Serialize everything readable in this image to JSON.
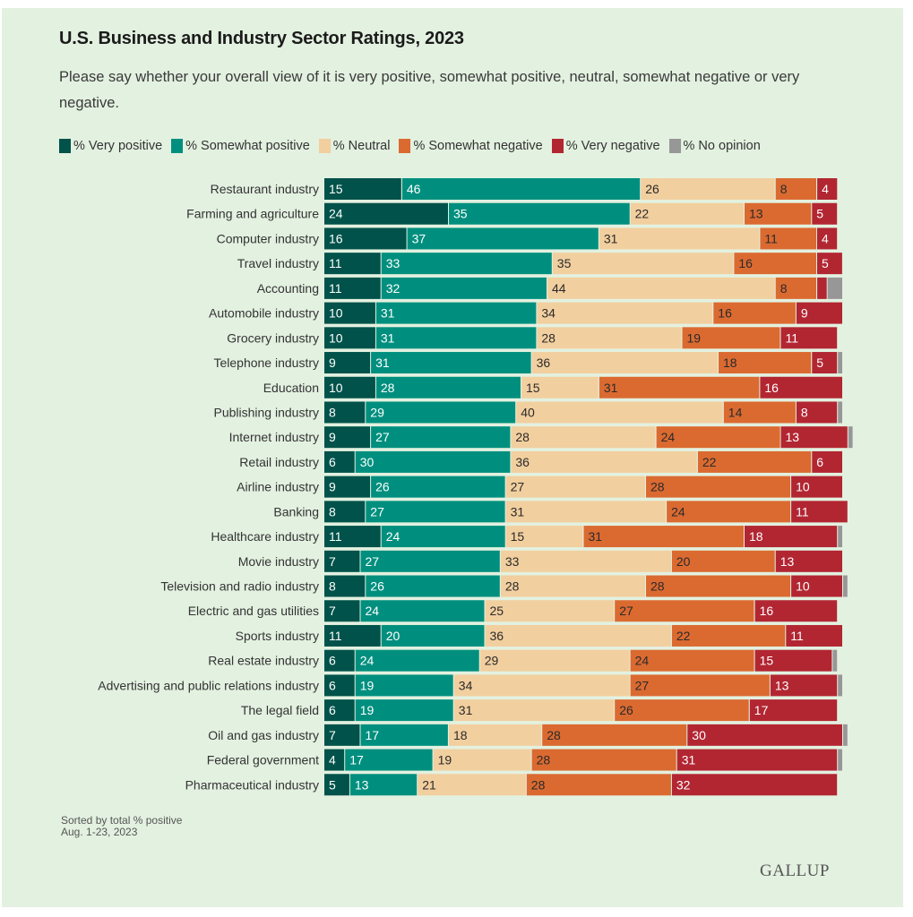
{
  "title": "U.S. Business and Industry Sector Ratings, 2023",
  "subtitle": "Please say whether your overall view of it is very positive, somewhat positive, neutral, somewhat negative or very negative.",
  "footnote": {
    "line1": "Sorted by total % positive",
    "line2": "Aug. 1-23, 2023"
  },
  "logo": "GALLUP",
  "colors": {
    "very_positive": "#00524a",
    "somewhat_positive": "#008f7e",
    "neutral": "#f2cf9f",
    "somewhat_negative": "#db6a31",
    "very_negative": "#b22632",
    "no_opinion": "#979797",
    "label_light": "#ffffff",
    "label_dark": "#2a2a2a"
  },
  "legend": [
    {
      "key": "very_positive",
      "label": "% Very positive"
    },
    {
      "key": "somewhat_positive",
      "label": "% Somewhat positive"
    },
    {
      "key": "neutral",
      "label": "% Neutral"
    },
    {
      "key": "somewhat_negative",
      "label": "% Somewhat negative"
    },
    {
      "key": "very_negative",
      "label": "% Very negative"
    },
    {
      "key": "no_opinion",
      "label": "% No opinion"
    }
  ],
  "chart_data": {
    "type": "bar",
    "orientation": "horizontal",
    "stacked": true,
    "title": "U.S. Business and Industry Sector Ratings, 2023",
    "xlabel": "",
    "ylabel": "",
    "xlim": [
      0,
      100
    ],
    "grid": false,
    "legend_position": "top",
    "categories": [
      "Restaurant industry",
      "Farming and agriculture",
      "Computer industry",
      "Travel industry",
      "Accounting",
      "Automobile industry",
      "Grocery industry",
      "Telephone industry",
      "Education",
      "Publishing industry",
      "Internet industry",
      "Retail industry",
      "Airline industry",
      "Banking",
      "Healthcare industry",
      "Movie industry",
      "Television and radio industry",
      "Electric and gas utilities",
      "Sports industry",
      "Real estate industry",
      "Advertising and public relations industry",
      "The legal field",
      "Oil and gas industry",
      "Federal government",
      "Pharmaceutical industry"
    ],
    "series": [
      {
        "name": "% Very positive",
        "key": "very_positive",
        "labeled": [
          true,
          true,
          true,
          true,
          true,
          true,
          true,
          true,
          true,
          true,
          true,
          true,
          true,
          true,
          true,
          true,
          true,
          true,
          true,
          true,
          true,
          true,
          true,
          true,
          true
        ],
        "values": [
          15,
          24,
          16,
          11,
          11,
          10,
          10,
          9,
          10,
          8,
          9,
          6,
          9,
          8,
          11,
          7,
          8,
          7,
          11,
          6,
          6,
          6,
          7,
          4,
          5
        ]
      },
      {
        "name": "% Somewhat positive",
        "key": "somewhat_positive",
        "labeled": [
          true,
          true,
          true,
          true,
          true,
          true,
          true,
          true,
          true,
          true,
          true,
          true,
          true,
          true,
          true,
          true,
          true,
          true,
          true,
          true,
          true,
          true,
          true,
          true,
          true
        ],
        "values": [
          46,
          35,
          37,
          33,
          32,
          31,
          31,
          31,
          28,
          29,
          27,
          30,
          26,
          27,
          24,
          27,
          26,
          24,
          20,
          24,
          19,
          19,
          17,
          17,
          13
        ]
      },
      {
        "name": "% Neutral",
        "key": "neutral",
        "labeled": [
          true,
          true,
          true,
          true,
          true,
          true,
          true,
          true,
          true,
          true,
          true,
          true,
          true,
          true,
          true,
          true,
          true,
          true,
          true,
          true,
          true,
          true,
          true,
          true,
          true
        ],
        "values": [
          26,
          22,
          31,
          35,
          44,
          34,
          28,
          36,
          15,
          40,
          28,
          36,
          27,
          31,
          15,
          33,
          28,
          25,
          36,
          29,
          34,
          31,
          18,
          19,
          21
        ]
      },
      {
        "name": "% Somewhat negative",
        "key": "somewhat_negative",
        "labeled": [
          true,
          true,
          true,
          true,
          true,
          true,
          true,
          true,
          true,
          true,
          true,
          true,
          true,
          true,
          true,
          true,
          true,
          true,
          true,
          true,
          true,
          true,
          true,
          true,
          true
        ],
        "values": [
          8,
          13,
          11,
          16,
          8,
          16,
          19,
          18,
          31,
          14,
          24,
          22,
          28,
          24,
          31,
          20,
          28,
          27,
          22,
          24,
          27,
          26,
          28,
          28,
          28
        ]
      },
      {
        "name": "% Very negative",
        "key": "very_negative",
        "labeled": [
          true,
          true,
          true,
          true,
          false,
          true,
          true,
          true,
          true,
          true,
          true,
          true,
          true,
          true,
          true,
          true,
          true,
          true,
          true,
          true,
          true,
          true,
          true,
          true,
          true
        ],
        "values": [
          4,
          5,
          4,
          5,
          2,
          9,
          11,
          5,
          16,
          8,
          13,
          6,
          10,
          11,
          18,
          13,
          10,
          16,
          11,
          15,
          13,
          17,
          30,
          31,
          32
        ]
      },
      {
        "name": "% No opinion",
        "key": "no_opinion",
        "labeled": [
          false,
          false,
          false,
          false,
          false,
          false,
          false,
          false,
          false,
          false,
          false,
          false,
          false,
          false,
          false,
          false,
          false,
          false,
          false,
          false,
          false,
          false,
          false,
          false,
          false
        ],
        "values": [
          0,
          0,
          0,
          0,
          3,
          0,
          0,
          1,
          0,
          1,
          1,
          0,
          0,
          0,
          1,
          0,
          1,
          0,
          0,
          1,
          1,
          0,
          1,
          1,
          0
        ]
      }
    ]
  }
}
